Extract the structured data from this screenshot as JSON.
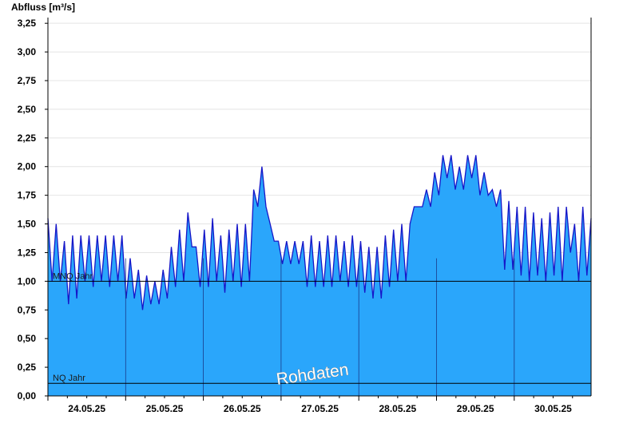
{
  "chart_data": {
    "type": "area",
    "title": "Abfluss [m³/s]",
    "ylim": [
      0,
      3.3
    ],
    "y_ticks": [
      "0,00",
      "0,25",
      "0,50",
      "0,75",
      "1,00",
      "1,25",
      "1,50",
      "1,75",
      "2,00",
      "2,25",
      "2,50",
      "2,75",
      "3,00",
      "3,25"
    ],
    "x_ticks": [
      "24.05.25",
      "25.05.25",
      "26.05.25",
      "27.05.25",
      "28.05.25",
      "29.05.25",
      "30.05.25"
    ],
    "reference_lines": [
      {
        "label": "MNQ Jahr",
        "value": 1.0
      },
      {
        "label": "NQ Jahr",
        "value": 0.11
      }
    ],
    "watermark": "Rohdaten",
    "grid": true,
    "series": [
      {
        "values": [
          1.55,
          1.0,
          1.5,
          1.0,
          1.35,
          0.8,
          1.4,
          0.85,
          1.4,
          1.0,
          1.4,
          0.95,
          1.4,
          1.0,
          1.4,
          0.95,
          1.4,
          1.0,
          1.4,
          0.85,
          1.2,
          0.85,
          1.1,
          0.75,
          1.05,
          0.8,
          1.0,
          0.8,
          1.1,
          0.85,
          1.3,
          0.95,
          1.45,
          1.0,
          1.6,
          1.3,
          1.3,
          0.95,
          1.45,
          0.95,
          1.55,
          1.0,
          1.4,
          0.9,
          1.45,
          1.0,
          1.5,
          0.95,
          1.5,
          1.0,
          1.8,
          1.65,
          2.0,
          1.65,
          1.5,
          1.35,
          1.35,
          1.15,
          1.35,
          1.15,
          1.35,
          1.15,
          1.35,
          0.95,
          1.4,
          0.95,
          1.35,
          0.95,
          1.4,
          0.95,
          1.4,
          1.0,
          1.35,
          0.95,
          1.4,
          0.95,
          1.35,
          0.9,
          1.3,
          0.85,
          1.3,
          0.85,
          1.4,
          0.95,
          1.45,
          1.0,
          1.5,
          1.0,
          1.5,
          1.65,
          1.65,
          1.65,
          1.8,
          1.65,
          1.95,
          1.75,
          2.1,
          1.9,
          2.1,
          1.8,
          2.0,
          1.8,
          2.1,
          1.9,
          2.1,
          1.75,
          1.95,
          1.75,
          1.8,
          1.65,
          1.8,
          1.1,
          1.7,
          1.1,
          1.65,
          1.05,
          1.65,
          1.0,
          1.6,
          1.05,
          1.55,
          1.0,
          1.6,
          1.05,
          1.65,
          1.0,
          1.65,
          1.25,
          1.5,
          1.0,
          1.65,
          1.05,
          1.55
        ],
        "x_start": "23.05.25 15:00",
        "x_end": "30.05.25 23:00"
      }
    ]
  }
}
